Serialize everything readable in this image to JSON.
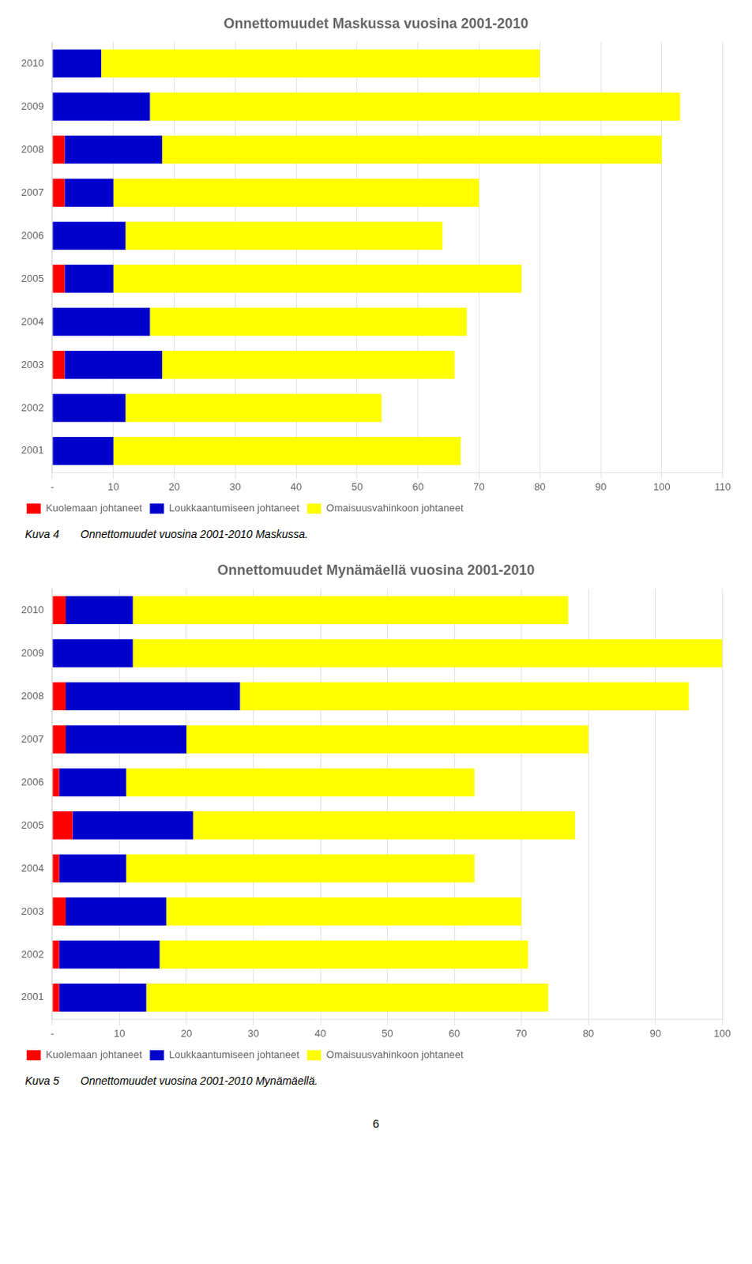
{
  "chart_data": [
    {
      "type": "bar",
      "orientation": "horizontal",
      "stacked": true,
      "grid": true,
      "legend": "bottom",
      "title": "Onnettomuudet Maskussa vuosina 2001-2010",
      "categories": [
        "2010",
        "2009",
        "2008",
        "2007",
        "2006",
        "2005",
        "2004",
        "2003",
        "2002",
        "2001"
      ],
      "series": [
        {
          "name": "Kuolemaan johtaneet",
          "color": "#FF0000",
          "values": [
            0,
            0,
            2,
            2,
            0,
            2,
            0,
            2,
            0,
            0
          ]
        },
        {
          "name": "Loukkaantumiseen johtaneet",
          "color": "#0000CC",
          "values": [
            8,
            16,
            16,
            8,
            12,
            8,
            16,
            16,
            12,
            10
          ]
        },
        {
          "name": "Omaisuusvahinkoon johtaneet",
          "color": "#FFFF00",
          "values": [
            72,
            87,
            82,
            60,
            52,
            67,
            52,
            48,
            42,
            57
          ]
        }
      ],
      "xlim": [
        0,
        110
      ],
      "xticks": [
        {
          "value": 0,
          "label": "-"
        },
        10,
        20,
        30,
        40,
        50,
        60,
        70,
        80,
        90,
        100,
        110
      ],
      "annotations": [
        "Kuva 4       Onnettomuudet vuosina 2001-2010 Maskussa."
      ]
    },
    {
      "type": "bar",
      "orientation": "horizontal",
      "stacked": true,
      "grid": true,
      "legend": "bottom",
      "title": "Onnettomuudet Mynämäellä vuosina 2001-2010",
      "categories": [
        "2010",
        "2009",
        "2008",
        "2007",
        "2006",
        "2005",
        "2004",
        "2003",
        "2002",
        "2001"
      ],
      "series": [
        {
          "name": "Kuolemaan johtaneet",
          "color": "#FF0000",
          "values": [
            2,
            0,
            2,
            2,
            1,
            3,
            1,
            2,
            1,
            1
          ]
        },
        {
          "name": "Loukkaantumiseen johtaneet",
          "color": "#0000CC",
          "values": [
            10,
            12,
            26,
            18,
            10,
            18,
            10,
            15,
            15,
            13
          ]
        },
        {
          "name": "Omaisuusvahinkoon johtaneet",
          "color": "#FFFF00",
          "values": [
            65,
            88,
            67,
            60,
            52,
            57,
            52,
            53,
            55,
            60
          ]
        }
      ],
      "xlim": [
        0,
        100
      ],
      "xticks": [
        {
          "value": 0,
          "label": "-"
        },
        10,
        20,
        30,
        40,
        50,
        60,
        70,
        80,
        90,
        100
      ],
      "annotations": [
        "Kuva 5       Onnettomuudet vuosina 2001-2010 Mynämäellä."
      ]
    }
  ],
  "annotations": [
    "6"
  ]
}
